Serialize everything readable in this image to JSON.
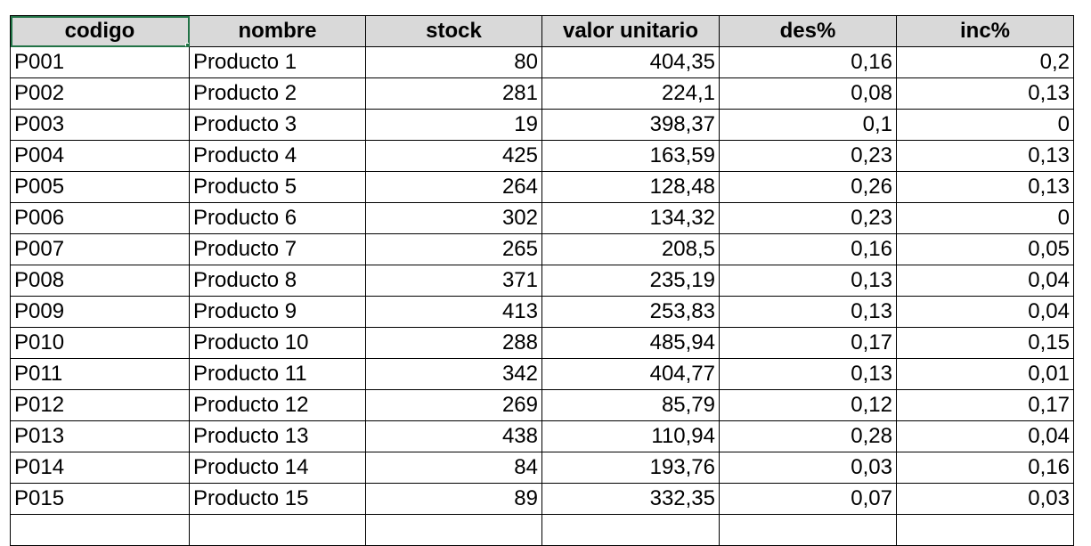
{
  "columns": [
    "codigo",
    "nombre",
    "stock",
    "valor unitario",
    "des%",
    "inc%"
  ],
  "rows": [
    [
      "P001",
      "Producto 1",
      "80",
      "404,35",
      "0,16",
      "0,2"
    ],
    [
      "P002",
      "Producto 2",
      "281",
      "224,1",
      "0,08",
      "0,13"
    ],
    [
      "P003",
      "Producto 3",
      "19",
      "398,37",
      "0,1",
      "0"
    ],
    [
      "P004",
      "Producto 4",
      "425",
      "163,59",
      "0,23",
      "0,13"
    ],
    [
      "P005",
      "Producto 5",
      "264",
      "128,48",
      "0,26",
      "0,13"
    ],
    [
      "P006",
      "Producto 6",
      "302",
      "134,32",
      "0,23",
      "0"
    ],
    [
      "P007",
      "Producto 7",
      "265",
      "208,5",
      "0,16",
      "0,05"
    ],
    [
      "P008",
      "Producto 8",
      "371",
      "235,19",
      "0,13",
      "0,04"
    ],
    [
      "P009",
      "Producto 9",
      "413",
      "253,83",
      "0,13",
      "0,04"
    ],
    [
      "P010",
      "Producto 10",
      "288",
      "485,94",
      "0,17",
      "0,15"
    ],
    [
      "P011",
      "Producto 11",
      "342",
      "404,77",
      "0,13",
      "0,01"
    ],
    [
      "P012",
      "Producto 12",
      "269",
      "85,79",
      "0,12",
      "0,17"
    ],
    [
      "P013",
      "Producto 13",
      "438",
      "110,94",
      "0,28",
      "0,04"
    ],
    [
      "P014",
      "Producto 14",
      "84",
      "193,76",
      "0,03",
      "0,16"
    ],
    [
      "P015",
      "Producto 15",
      "89",
      "332,35",
      "0,07",
      "0,03"
    ],
    [
      "",
      "",
      "",
      "",
      "",
      ""
    ]
  ],
  "selected_cell": {
    "row": 0,
    "col": 0
  },
  "colors": {
    "selection": "#217346",
    "header_fill": "#d9d9d9"
  }
}
